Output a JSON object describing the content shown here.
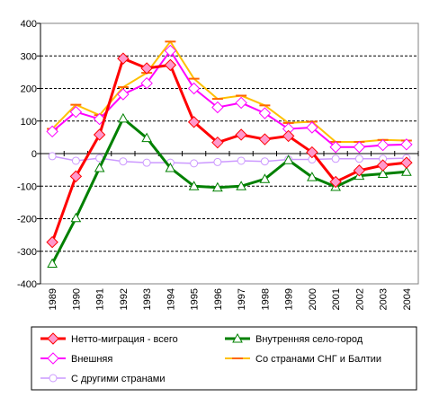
{
  "chart_data": {
    "type": "line",
    "title": "",
    "xlabel": "",
    "ylabel": "",
    "ylim": [
      -400,
      400
    ],
    "yticks": [
      -400,
      -300,
      -200,
      -100,
      0,
      100,
      200,
      300,
      400
    ],
    "grid": "horizontal dashed",
    "legend_position": "bottom",
    "categories": [
      "1989",
      "1990",
      "1991",
      "1992",
      "1993",
      "1994",
      "1995",
      "1996",
      "1997",
      "1998",
      "1999",
      "2000",
      "2001",
      "2002",
      "2003",
      "2004"
    ],
    "series": [
      {
        "name": "Нетто-миграция - всего",
        "color": "#ff0000",
        "marker": "diamond",
        "marker_fill": "#ff99cc",
        "line_width": 3,
        "values": [
          -272,
          -70,
          58,
          292,
          262,
          272,
          97,
          34,
          58,
          44,
          54,
          4,
          -87,
          -52,
          -36,
          -28
        ]
      },
      {
        "name": "Внутренняя село-город",
        "color": "#008000",
        "marker": "triangle",
        "marker_fill": "#ffffff",
        "line_width": 3,
        "values": [
          -338,
          -198,
          -44,
          108,
          48,
          -44,
          -100,
          -104,
          -100,
          -78,
          -20,
          -72,
          -102,
          -68,
          -62,
          -56
        ]
      },
      {
        "name": "Внешняя",
        "color": "#ff00ff",
        "marker": "diamond",
        "marker_fill": "#ffffff",
        "line_width": 2,
        "values": [
          68,
          128,
          106,
          182,
          216,
          316,
          200,
          142,
          156,
          124,
          76,
          80,
          20,
          20,
          26,
          28
        ]
      },
      {
        "name": "Со странами СНГ и Балтии",
        "color": "#ffc000",
        "marker": "dash",
        "marker_fill": "#ff6600",
        "line_width": 2,
        "values": [
          76,
          150,
          118,
          204,
          248,
          344,
          230,
          168,
          178,
          148,
          94,
          98,
          36,
          36,
          42,
          40
        ]
      },
      {
        "name": "С другими странами",
        "color": "#cc99ff",
        "marker": "circle",
        "marker_fill": "#ffffff",
        "line_width": 1.5,
        "values": [
          -8,
          -22,
          -14,
          -24,
          -28,
          -28,
          -30,
          -26,
          -22,
          -24,
          -18,
          -18,
          -16,
          -16,
          -16,
          -14
        ]
      }
    ]
  }
}
